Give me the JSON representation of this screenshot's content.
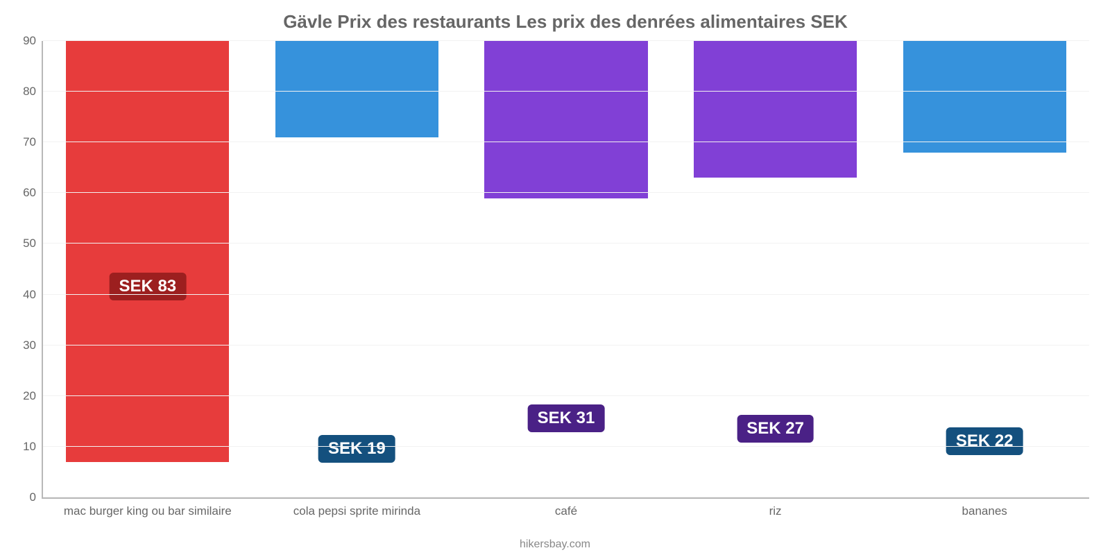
{
  "chart": {
    "type": "bar",
    "title": "Gävle Prix des restaurants Les prix des denrées alimentaires SEK",
    "title_fontsize": 26,
    "title_color": "#666666",
    "background_color": "#ffffff",
    "grid_color": "#f2f2f2",
    "axis_color": "#b8b8b8",
    "tick_label_color": "#666666",
    "tick_fontsize": 17,
    "ylim": [
      0,
      90
    ],
    "ytick_step": 10,
    "yticks": [
      0,
      10,
      20,
      30,
      40,
      50,
      60,
      70,
      80,
      90
    ],
    "bar_width_pct": 78,
    "value_prefix": "SEK ",
    "value_label_fontsize": 24,
    "categories": [
      "mac burger king ou bar similaire",
      "cola pepsi sprite mirinda",
      "café",
      "riz",
      "bananes"
    ],
    "values": [
      83,
      19,
      31,
      27,
      22
    ],
    "bar_colors": [
      "#e73c3c",
      "#3692dc",
      "#8140d6",
      "#8140d6",
      "#3692dc"
    ],
    "badge_colors": [
      "#9c1f1f",
      "#14507e",
      "#4a2186",
      "#4a2186",
      "#14507e"
    ],
    "badge_text_color": "#ffffff",
    "attribution": "hikersbay.com"
  }
}
